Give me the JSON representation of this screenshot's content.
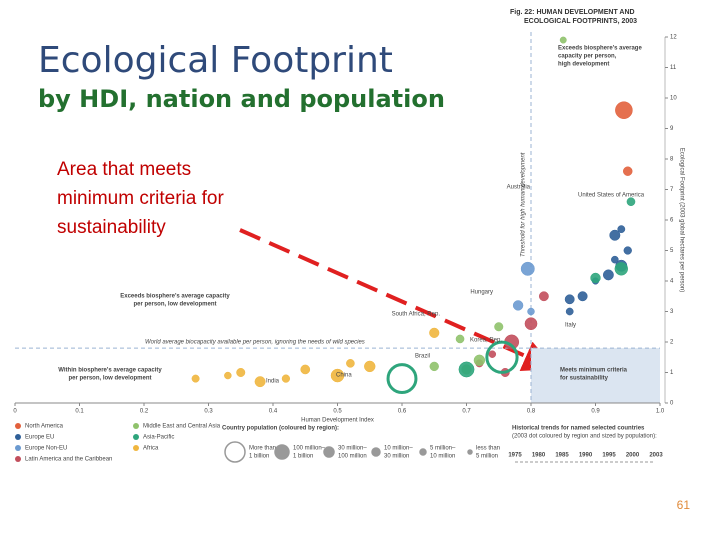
{
  "slide": {
    "title": "Ecological Footprint",
    "subtitle": "by HDI, nation and population",
    "annotation": [
      "Area that meets",
      "minimum criteria for",
      "sustainability"
    ],
    "page_number": "61"
  },
  "chart_data": {
    "type": "bubble",
    "figure_title": [
      "Fig. 22: HUMAN DEVELOPMENT AND",
      "ECOLOGICAL FOOTPRINTS, 2003"
    ],
    "x_label": "Human Development Index",
    "y_label": "Ecological Footprint (2003 global hectares per person)",
    "xlim": [
      0,
      1
    ],
    "ylim": [
      0,
      12
    ],
    "xticks": [
      0,
      0.1,
      0.2,
      0.3,
      0.4,
      0.5,
      0.6,
      0.7,
      0.8,
      0.9,
      {
        "value": 1,
        "label": "1.0"
      }
    ],
    "yticks": [
      0,
      1,
      2,
      3,
      4,
      5,
      6,
      7,
      8,
      9,
      10,
      11,
      12
    ],
    "reference_lines": [
      {
        "axis": "x",
        "value": 0.8,
        "label": "Threshold for high human development"
      },
      {
        "axis": "y",
        "value": 1.8,
        "label": "World average biocapacity available per person, ignoring the needs of wild species"
      }
    ],
    "quadrant_labels": [
      [
        "Exceeds biosphere's average",
        "capacity per person,",
        "high development"
      ],
      [
        "Exceeds biosphere's average capacity",
        "per person, low development"
      ],
      [
        "Within biosphere's average capacity",
        "per person, low development"
      ],
      [
        "Meets minimum criteria",
        "for sustainability"
      ]
    ],
    "country_labels": [
      "Australia",
      "United States of America",
      "Hungary",
      "South Africa, Rep.",
      "Korea, Rep.",
      "Italy",
      "Brazil",
      "China",
      "India"
    ],
    "series": [
      {
        "name": "North America",
        "color": "#e2603c",
        "x": [
          0.944,
          0.95
        ],
        "values": [
          9.6,
          7.6
        ],
        "sizes": [
          295,
          32
        ]
      },
      {
        "name": "Europe EU",
        "color": "#2f5f98",
        "x": [
          0.93,
          0.94,
          0.92,
          0.95,
          0.88,
          0.86,
          0.93,
          0.9,
          0.94,
          0.86
        ],
        "values": [
          5.5,
          4.5,
          4.2,
          5.0,
          3.5,
          3.0,
          4.7,
          4.0,
          5.7,
          3.4
        ],
        "sizes": [
          60,
          82,
          58,
          16,
          40,
          10,
          9,
          5,
          11,
          38
        ]
      },
      {
        "name": "Europe Non-EU",
        "color": "#6b9ad0",
        "x": [
          0.795,
          0.78,
          0.8
        ],
        "values": [
          4.4,
          3.2,
          3.0
        ],
        "sizes": [
          143,
          48,
          8
        ]
      },
      {
        "name": "Latin America and the Caribbean",
        "color": "#c24e5c",
        "x": [
          0.77,
          0.8,
          0.72,
          0.76,
          0.82,
          0.74
        ],
        "values": [
          2.0,
          2.6,
          1.3,
          1.0,
          3.5,
          1.6
        ],
        "sizes": [
          180,
          104,
          12,
          25,
          38,
          8
        ]
      },
      {
        "name": "Middle East and Central Asia",
        "color": "#8fc26b",
        "x": [
          0.72,
          0.7,
          0.85,
          0.65,
          0.69,
          0.75
        ],
        "values": [
          1.4,
          1.1,
          11.9,
          1.2,
          2.1,
          2.5
        ],
        "sizes": [
          70,
          45,
          4,
          30,
          20,
          26
        ]
      },
      {
        "name": "Asia-Pacific",
        "color": "#2ea57c",
        "x": [
          0.755,
          0.6,
          0.955,
          0.94,
          0.7,
          0.9
        ],
        "values": [
          1.5,
          0.8,
          6.6,
          4.4,
          1.1,
          4.1
        ],
        "sizes": [
          1300,
          1070,
          20,
          128,
          215,
          48
        ]
      },
      {
        "name": "Africa",
        "color": "#f0b63e",
        "x": [
          0.28,
          0.35,
          0.38,
          0.45,
          0.5,
          0.52,
          0.33,
          0.42,
          0.55,
          0.65
        ],
        "values": [
          0.8,
          1.0,
          0.7,
          1.1,
          0.9,
          1.3,
          0.9,
          0.8,
          1.2,
          2.3
        ],
        "sizes": [
          12,
          25,
          60,
          35,
          130,
          20,
          8,
          15,
          70,
          45
        ]
      }
    ],
    "population_legend_title": "Country population (coloured by region):",
    "population_legend": [
      [
        "More than",
        "1 billion"
      ],
      [
        "100 million–",
        "1 billion"
      ],
      [
        "30 million–",
        "100 million"
      ],
      [
        "10 million–",
        "30 million"
      ],
      [
        "5 million–",
        "10 million"
      ],
      [
        "less than",
        "5 million"
      ]
    ],
    "trend_legend_title": [
      "Historical trends for named selected countries",
      "(2003 dot coloured by region and sized by population):"
    ],
    "trend_years": [
      "1975",
      "1980",
      "1985",
      "1990",
      "1995",
      "2000",
      "2003"
    ]
  }
}
